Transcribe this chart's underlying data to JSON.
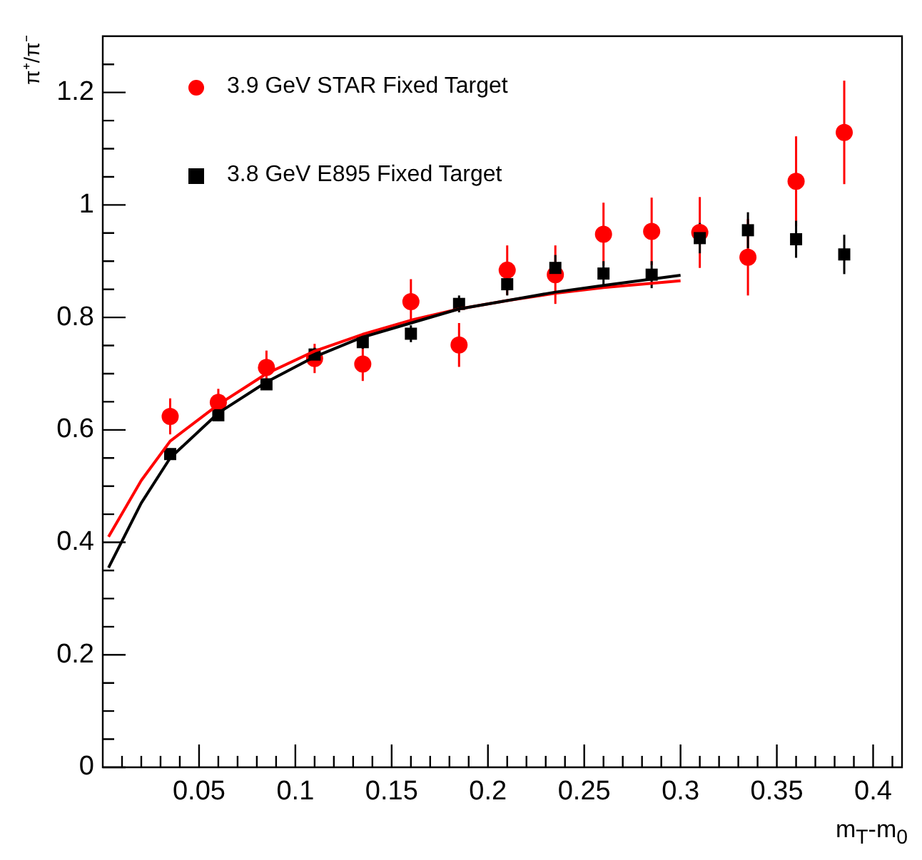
{
  "chart_data": {
    "type": "scatter",
    "xlabel": "m$_{T}$-m$_{0}$",
    "ylabel": "π⁺/π⁻",
    "x": [
      0.035,
      0.06,
      0.085,
      0.11,
      0.135,
      0.16,
      0.185,
      0.21,
      0.235,
      0.26,
      0.285,
      0.31,
      0.335,
      0.36,
      0.385
    ],
    "xlim": [
      0,
      0.415
    ],
    "ylim": [
      0,
      1.3
    ],
    "xticks": [
      {
        "value": 0.01,
        "label": null
      },
      {
        "value": 0.02,
        "label": null
      },
      {
        "value": 0.03,
        "label": null
      },
      {
        "value": 0.04,
        "label": null
      },
      0.05,
      {
        "value": 0.06,
        "label": null
      },
      {
        "value": 0.07,
        "label": null
      },
      {
        "value": 0.08,
        "label": null
      },
      {
        "value": 0.09,
        "label": null
      },
      0.1,
      {
        "value": 0.11,
        "label": null
      },
      {
        "value": 0.12,
        "label": null
      },
      {
        "value": 0.13,
        "label": null
      },
      {
        "value": 0.14,
        "label": null
      },
      0.15,
      {
        "value": 0.16,
        "label": null
      },
      {
        "value": 0.17,
        "label": null
      },
      {
        "value": 0.18,
        "label": null
      },
      {
        "value": 0.19,
        "label": null
      },
      0.2,
      {
        "value": 0.21,
        "label": null
      },
      {
        "value": 0.22,
        "label": null
      },
      {
        "value": 0.23,
        "label": null
      },
      {
        "value": 0.24,
        "label": null
      },
      0.25,
      {
        "value": 0.26,
        "label": null
      },
      {
        "value": 0.27,
        "label": null
      },
      {
        "value": 0.28,
        "label": null
      },
      {
        "value": 0.29,
        "label": null
      },
      0.3,
      {
        "value": 0.31,
        "label": null
      },
      {
        "value": 0.32,
        "label": null
      },
      {
        "value": 0.33,
        "label": null
      },
      {
        "value": 0.34,
        "label": null
      },
      0.35,
      {
        "value": 0.36,
        "label": null
      },
      {
        "value": 0.37,
        "label": null
      },
      {
        "value": 0.38,
        "label": null
      },
      {
        "value": 0.39,
        "label": null
      },
      0.4,
      {
        "value": 0.41,
        "label": null
      }
    ],
    "yticks": [
      0,
      {
        "value": 0.05,
        "label": null
      },
      {
        "value": 0.1,
        "label": null
      },
      {
        "value": 0.15,
        "label": null
      },
      0.2,
      {
        "value": 0.25,
        "label": null
      },
      {
        "value": 0.3,
        "label": null
      },
      {
        "value": 0.35,
        "label": null
      },
      0.4,
      {
        "value": 0.45,
        "label": null
      },
      {
        "value": 0.5,
        "label": null
      },
      {
        "value": 0.55,
        "label": null
      },
      0.6,
      {
        "value": 0.65,
        "label": null
      },
      {
        "value": 0.7,
        "label": null
      },
      {
        "value": 0.75,
        "label": null
      },
      0.8,
      {
        "value": 0.85,
        "label": null
      },
      {
        "value": 0.9,
        "label": null
      },
      {
        "value": 0.95,
        "label": null
      },
      1,
      {
        "value": 1.05,
        "label": null
      },
      {
        "value": 1.1,
        "label": null
      },
      {
        "value": 1.15,
        "label": null
      },
      1.2,
      {
        "value": 1.25,
        "label": null
      }
    ],
    "grid": false,
    "legend": "top left",
    "series": [
      {
        "name": "3.9 GeV STAR Fixed Target",
        "type": "scatter",
        "marker": "circle",
        "color": "#ff0000",
        "values": [
          0.624,
          0.649,
          0.711,
          0.727,
          0.717,
          0.828,
          0.751,
          0.884,
          0.876,
          0.948,
          0.953,
          0.951,
          0.907,
          1.042,
          1.129
        ],
        "errors": [
          0.032,
          0.024,
          0.03,
          0.026,
          0.03,
          0.04,
          0.039,
          0.044,
          0.052,
          0.056,
          0.06,
          0.063,
          0.068,
          0.08,
          0.092
        ]
      },
      {
        "name": "3.8 GeV E895 Fixed Target",
        "type": "scatter",
        "marker": "square",
        "color": "#000000",
        "values": [
          0.557,
          0.626,
          0.681,
          0.734,
          0.756,
          0.771,
          0.824,
          0.859,
          0.888,
          0.878,
          0.876,
          0.941,
          0.955,
          0.939,
          0.912
        ],
        "errors": [
          0.01,
          0.01,
          0.01,
          0.012,
          0.012,
          0.015,
          0.015,
          0.02,
          0.023,
          0.022,
          0.024,
          0.027,
          0.032,
          0.033,
          0.035
        ]
      },
      {
        "type": "line",
        "marker": "none",
        "line_style": "solid",
        "color": "#ff0000",
        "x": [
          0.003,
          0.02,
          0.035,
          0.06,
          0.085,
          0.11,
          0.135,
          0.16,
          0.185,
          0.21,
          0.235,
          0.26,
          0.3
        ],
        "values": [
          0.41,
          0.51,
          0.58,
          0.645,
          0.7,
          0.74,
          0.77,
          0.795,
          0.815,
          0.83,
          0.843,
          0.853,
          0.865
        ]
      },
      {
        "type": "line",
        "marker": "none",
        "line_style": "solid",
        "color": "#000000",
        "x": [
          0.003,
          0.02,
          0.035,
          0.06,
          0.085,
          0.11,
          0.135,
          0.16,
          0.185,
          0.21,
          0.235,
          0.26,
          0.3
        ],
        "values": [
          0.355,
          0.47,
          0.55,
          0.63,
          0.685,
          0.73,
          0.765,
          0.79,
          0.815,
          0.83,
          0.845,
          0.857,
          0.875
        ]
      }
    ]
  }
}
